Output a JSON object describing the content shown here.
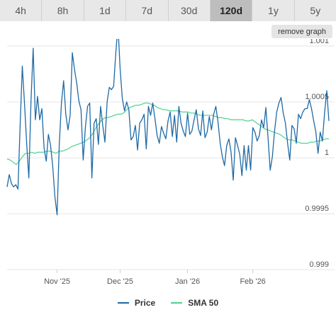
{
  "tabs": [
    {
      "label": "4h",
      "active": false
    },
    {
      "label": "8h",
      "active": false
    },
    {
      "label": "1d",
      "active": false
    },
    {
      "label": "7d",
      "active": false
    },
    {
      "label": "30d",
      "active": false
    },
    {
      "label": "120d",
      "active": true
    },
    {
      "label": "1y",
      "active": false
    },
    {
      "label": "5y",
      "active": false
    }
  ],
  "remove_graph_label": "remove graph",
  "colors": {
    "price": "#1f6aa5",
    "sma": "#4cd18f",
    "grid": "#e6e6e6"
  },
  "chart_data": {
    "type": "line",
    "x_tick_labels": [
      "Nov '25",
      "Dec '25",
      "Jan '26",
      "Feb '26"
    ],
    "x_tick_index": [
      23,
      52,
      83,
      113
    ],
    "y_ticks": [
      0.999,
      0.9995,
      1,
      1.0005,
      1.001
    ],
    "y_tick_labels": [
      "0.999",
      "0.9995",
      "1",
      "1.0005",
      "1.001"
    ],
    "ylim": [
      0.999,
      1.001
    ],
    "grid": true,
    "legend_position": "bottom",
    "series": [
      {
        "name": "Price",
        "values": [
          0.99974,
          0.99985,
          0.99977,
          0.99974,
          0.99976,
          0.99972,
          1.00029,
          1.00082,
          1.00049,
          1.00013,
          0.99982,
          1.00051,
          1.00098,
          1.00034,
          1.00055,
          1.00034,
          1.00044,
          1.00009,
          0.99997,
          1.00021,
          1.00011,
          0.99992,
          0.99965,
          0.99949,
          1.00012,
          1.00049,
          1.00069,
          1.00039,
          1.00025,
          1.00038,
          1.00094,
          1.00079,
          1.00067,
          1.00051,
          1.00043,
          0.99998,
          1.00027,
          1.00046,
          1.00049,
          0.99982,
          1.00031,
          1.00035,
          1.00012,
          1.00046,
          1.00029,
          1.00014,
          1.0005,
          1.00063,
          1.00061,
          1.00064,
          1.00094,
          1.00118,
          1.00079,
          1.00053,
          1.00042,
          1.0005,
          1.00043,
          1.00016,
          1.00019,
          1.00029,
          1.00007,
          1.00031,
          1.00034,
          1.00039,
          1.00008,
          1.00046,
          1.00038,
          1.00049,
          1.00035,
          1.0002,
          1.00013,
          1.00028,
          1.00022,
          1.00017,
          1.00033,
          1.00041,
          1.00019,
          1.00038,
          1.00014,
          1.00046,
          1.00031,
          1.00024,
          1.00019,
          1.0004,
          1.00021,
          1.00024,
          1.00034,
          1.00043,
          1.00026,
          1.0002,
          1.00042,
          1.00018,
          1.00023,
          1.00037,
          1.00025,
          1.00039,
          1.00046,
          1.00032,
          1.00013,
          1.00001,
          0.99993,
          1.00011,
          1.00017,
          1.00005,
          0.9998,
          1.00018,
          1.00011,
          1.00003,
          0.99984,
          1.00011,
          0.99989,
          1.00011,
          0.99989,
          1.00027,
          1.00023,
          1.00015,
          1.0002,
          1.00034,
          1.00027,
          1.00045,
          1.00018,
          0.99989,
          1.00001,
          1.00024,
          1.00041,
          1.00049,
          1.00054,
          1.0004,
          1.00031,
          1.00013,
          0.99998,
          1.00029,
          1.00026,
          1.00013,
          1.00039,
          1.00035,
          1.00041,
          1.00044,
          1.00044,
          1.00052,
          1.00044,
          1.00033,
          1.00023,
          1.00004,
          1.00023,
          1.00015,
          1.0004,
          1.0006,
          1.00033
        ]
      },
      {
        "name": "SMA 50",
        "values": [
          0.99999,
          0.99998,
          0.99996,
          0.99994,
          0.99997,
          1.00001,
          1.00004,
          1.00004,
          1.00005,
          1.00004,
          1.00005,
          1.00005,
          1.00005,
          1.00006,
          1.00006,
          1.00005,
          1.00004,
          1.00006,
          1.00006,
          1.00007,
          1.00008,
          1.0001,
          1.00011,
          1.00012,
          1.00013,
          1.00014,
          1.00016,
          1.00018,
          1.00022,
          1.00027,
          1.00031,
          1.00034,
          1.00036,
          1.00036,
          1.00037,
          1.00038,
          1.00039,
          1.00039,
          1.0004,
          1.00043,
          1.00045,
          1.00046,
          1.00047,
          1.00047,
          1.00048,
          1.00049,
          1.00049,
          1.00048,
          1.00047,
          1.00045,
          1.00044,
          1.00043,
          1.00043,
          1.00042,
          1.00042,
          1.00042,
          1.00042,
          1.00041,
          1.00041,
          1.00041,
          1.0004,
          1.0004,
          1.00039,
          1.00038,
          1.00038,
          1.00038,
          1.00038,
          1.00038,
          1.00037,
          1.00036,
          1.00036,
          1.00035,
          1.00035,
          1.00034,
          1.00034,
          1.00034,
          1.00034,
          1.00034,
          1.00033,
          1.00033,
          1.00034,
          1.00032,
          1.0003,
          1.00028,
          1.00026,
          1.00025,
          1.00024,
          1.00023,
          1.00022,
          1.00021,
          1.00019,
          1.00017,
          1.00016,
          1.00016,
          1.00015,
          1.00014,
          1.00013,
          1.00013,
          1.00013,
          1.00014,
          1.00014,
          1.00015,
          1.00015,
          1.00016,
          1.00017,
          1.00017
        ]
      }
    ]
  }
}
